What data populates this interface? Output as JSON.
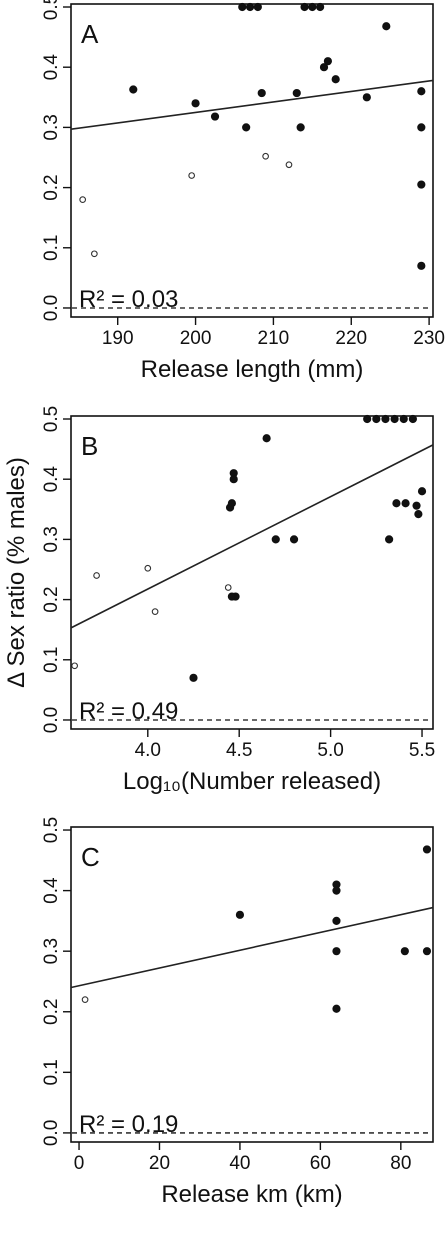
{
  "chart_data": [
    {
      "type": "scatter",
      "panel_label": "A",
      "xlabel": "Release length (mm)",
      "ylabel": "",
      "xlim": [
        184,
        230.5
      ],
      "ylim": [
        -0.015,
        0.505
      ],
      "xticks": [
        190,
        200,
        210,
        220,
        230
      ],
      "xtick_labels": [
        "190",
        "200",
        "210",
        "220",
        "230"
      ],
      "yticks": [
        0.0,
        0.1,
        0.2,
        0.3,
        0.4,
        0.5
      ],
      "ytick_labels": [
        "0.0",
        "0.1",
        "0.2",
        "0.3",
        "0.4",
        "0.5"
      ],
      "annotation": "R² = 0.03",
      "fit": {
        "x": [
          184,
          230.5
        ],
        "y": [
          0.297,
          0.378
        ]
      },
      "reference_line_y": 0,
      "series": [
        {
          "marker": "filled",
          "points": [
            [
              192,
              0.363
            ],
            [
              200,
              0.34
            ],
            [
              202.5,
              0.318
            ],
            [
              206,
              0.5
            ],
            [
              207,
              0.5
            ],
            [
              208,
              0.5
            ],
            [
              206.5,
              0.3
            ],
            [
              208.5,
              0.357
            ],
            [
              213,
              0.357
            ],
            [
              213.5,
              0.3
            ],
            [
              214,
              0.5
            ],
            [
              215,
              0.5
            ],
            [
              216,
              0.5
            ],
            [
              216.5,
              0.4
            ],
            [
              217,
              0.41
            ],
            [
              218,
              0.38
            ],
            [
              222,
              0.35
            ],
            [
              224.5,
              0.468
            ],
            [
              229,
              0.36
            ],
            [
              229,
              0.3
            ],
            [
              229,
              0.205
            ],
            [
              229,
              0.07
            ]
          ]
        },
        {
          "marker": "open",
          "points": [
            [
              185.5,
              0.18
            ],
            [
              187,
              0.09
            ],
            [
              199.5,
              0.22
            ],
            [
              209,
              0.252
            ],
            [
              212,
              0.238
            ]
          ]
        }
      ]
    },
    {
      "type": "scatter",
      "panel_label": "B",
      "xlabel": "Log₁₀(Number released)",
      "ylabel": "Δ Sex ratio (% males)",
      "xlim": [
        3.58,
        5.56
      ],
      "ylim": [
        -0.015,
        0.505
      ],
      "xticks": [
        4.0,
        4.5,
        5.0,
        5.5
      ],
      "xtick_labels": [
        "4.0",
        "4.5",
        "5.0",
        "5.5"
      ],
      "yticks": [
        0.0,
        0.1,
        0.2,
        0.3,
        0.4,
        0.5
      ],
      "ytick_labels": [
        "0.0",
        "0.1",
        "0.2",
        "0.3",
        "0.4",
        "0.5"
      ],
      "annotation": "R² = 0.49",
      "fit": {
        "x": [
          3.58,
          5.56
        ],
        "y": [
          0.153,
          0.457
        ]
      },
      "reference_line_y": 0,
      "series": [
        {
          "marker": "filled",
          "points": [
            [
              4.25,
              0.07
            ],
            [
              4.45,
              0.353
            ],
            [
              4.46,
              0.36
            ],
            [
              4.47,
              0.41
            ],
            [
              4.47,
              0.4
            ],
            [
              4.48,
              0.205
            ],
            [
              4.46,
              0.205
            ],
            [
              4.65,
              0.468
            ],
            [
              4.7,
              0.3
            ],
            [
              4.8,
              0.3
            ],
            [
              5.2,
              0.5
            ],
            [
              5.25,
              0.5
            ],
            [
              5.3,
              0.5
            ],
            [
              5.35,
              0.5
            ],
            [
              5.4,
              0.5
            ],
            [
              5.45,
              0.5
            ],
            [
              5.32,
              0.3
            ],
            [
              5.36,
              0.36
            ],
            [
              5.41,
              0.36
            ],
            [
              5.47,
              0.356
            ],
            [
              5.48,
              0.342
            ],
            [
              5.5,
              0.38
            ]
          ]
        },
        {
          "marker": "open",
          "points": [
            [
              3.6,
              0.09
            ],
            [
              3.72,
              0.24
            ],
            [
              4.0,
              0.252
            ],
            [
              4.04,
              0.18
            ],
            [
              4.44,
              0.22
            ]
          ]
        }
      ]
    },
    {
      "type": "scatter",
      "panel_label": "C",
      "xlabel": "Release km (km)",
      "ylabel": "",
      "xlim": [
        -2,
        88
      ],
      "ylim": [
        -0.015,
        0.505
      ],
      "xticks": [
        0,
        20,
        40,
        60,
        80
      ],
      "xtick_labels": [
        "0",
        "20",
        "40",
        "60",
        "80"
      ],
      "yticks": [
        0.0,
        0.1,
        0.2,
        0.3,
        0.4,
        0.5
      ],
      "ytick_labels": [
        "0.0",
        "0.1",
        "0.2",
        "0.3",
        "0.4",
        "0.5"
      ],
      "annotation": "R² = 0.19",
      "fit": {
        "x": [
          -2,
          88
        ],
        "y": [
          0.24,
          0.372
        ]
      },
      "reference_line_y": 0,
      "series": [
        {
          "marker": "filled",
          "points": [
            [
              40,
              0.36
            ],
            [
              64,
              0.41
            ],
            [
              64,
              0.4
            ],
            [
              64,
              0.35
            ],
            [
              64,
              0.3
            ],
            [
              64,
              0.205
            ],
            [
              81,
              0.3
            ],
            [
              86.5,
              0.468
            ],
            [
              86.5,
              0.3
            ]
          ]
        },
        {
          "marker": "open",
          "points": [
            [
              1.5,
              0.22
            ]
          ]
        }
      ]
    }
  ]
}
